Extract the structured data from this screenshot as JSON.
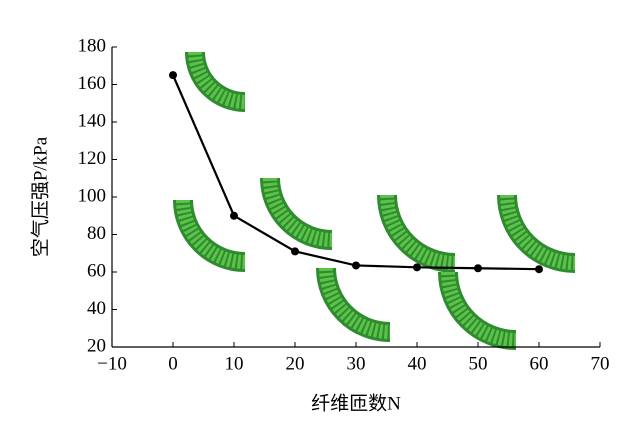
{
  "chart_data": {
    "type": "line",
    "x_label": "纤维匝数N",
    "y_label": "空气压强P/kPa",
    "x": [
      0,
      10,
      20,
      30,
      40,
      50,
      60
    ],
    "series": [
      {
        "name": "P",
        "color": "#000000",
        "values": [
          165,
          90,
          71,
          63.5,
          62.5,
          62,
          61.5
        ]
      }
    ],
    "xlim": [
      -10,
      70
    ],
    "xticks": [
      {
        "value": -10,
        "label": "−10"
      },
      0,
      10,
      20,
      30,
      40,
      50,
      60,
      70
    ],
    "ylim": [
      20,
      180
    ],
    "yticks": [
      20,
      40,
      60,
      80,
      100,
      120,
      140,
      160,
      180
    ],
    "grid": false
  }
}
